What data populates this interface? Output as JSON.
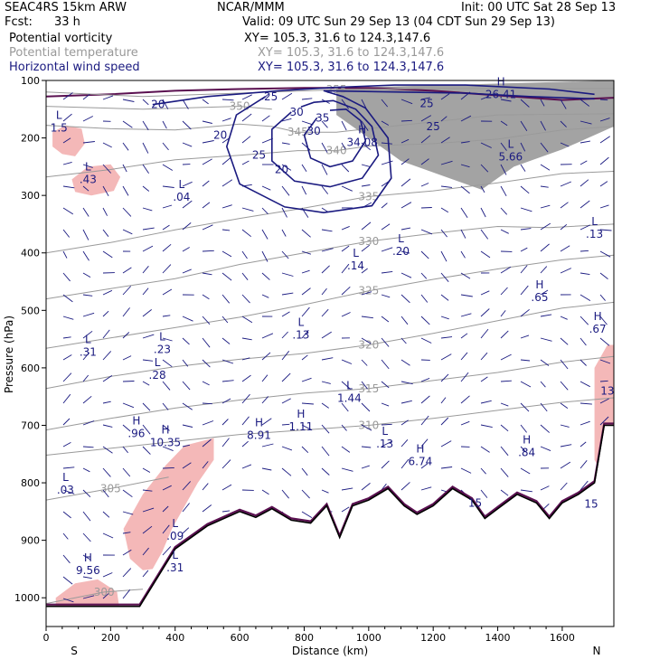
{
  "header": {
    "model": "SEAC4RS 15km ARW",
    "center": "NCAR/MMM",
    "init": "Init: 00 UTC Sat 28 Sep 13",
    "fcst_label": "Fcst:",
    "fcst_value": "33 h",
    "valid": "Valid: 09 UTC Sun 29 Sep 13 (04 CDT Sun 29 Sep 13)",
    "fields": [
      {
        "name": "Potential vorticity",
        "xy": "XY= 105.3, 31.6 to 124.3,147.6",
        "color": "#000000"
      },
      {
        "name": "Potential temperature",
        "xy": "XY= 105.3, 31.6 to 124.3,147.6",
        "color": "#999999"
      },
      {
        "name": "Horizontal wind speed",
        "xy": "XY= 105.3, 31.6 to 124.3,147.6",
        "color": "#1a1a80"
      }
    ]
  },
  "chart_data": {
    "type": "cross-section",
    "xlabel": "Distance (km)",
    "ylabel": "Pressure (hPa)",
    "xlim": [
      0,
      1760
    ],
    "ylim": [
      1050,
      100
    ],
    "xticks": [
      "0",
      "200",
      "400",
      "600",
      "800",
      "1000",
      "1200",
      "1400",
      "1600"
    ],
    "xtick_values": [
      0,
      200,
      400,
      600,
      800,
      1000,
      1200,
      1400,
      1600
    ],
    "yticks": [
      "100",
      "200",
      "300",
      "400",
      "500",
      "600",
      "700",
      "800",
      "900",
      "1000"
    ],
    "ytick_values": [
      100,
      200,
      300,
      400,
      500,
      600,
      700,
      800,
      900,
      1000
    ],
    "endpoint_labels": {
      "left": "S",
      "right": "N"
    },
    "colors": {
      "wind_speed": "#1a1a80",
      "theta": "#9a9a9a",
      "pv_fill": "#f4b8b8",
      "pv_dark": "#333333",
      "terrain": "#000000",
      "pv_contour": "#5a1050"
    },
    "wind_speed_contours": [
      {
        "value": "20",
        "points": [
          [
            330,
            142
          ],
          [
            500,
            128
          ],
          [
            720,
            118
          ],
          [
            900,
            112
          ],
          [
            1080,
            108
          ],
          [
            1300,
            108
          ],
          [
            1560,
            115
          ],
          [
            1700,
            124
          ]
        ]
      },
      {
        "value": "25",
        "points": [
          [
            680,
            128
          ],
          [
            590,
            160
          ],
          [
            560,
            215
          ],
          [
            600,
            280
          ],
          [
            740,
            320
          ],
          [
            860,
            330
          ],
          [
            1010,
            318
          ],
          [
            1070,
            270
          ],
          [
            1060,
            200
          ],
          [
            990,
            148
          ],
          [
            920,
            128
          ],
          [
            860,
            118
          ],
          [
            1300,
            122
          ],
          [
            1500,
            128
          ],
          [
            1700,
            132
          ]
        ]
      },
      {
        "value": "30",
        "points": [
          [
            760,
            155
          ],
          [
            700,
            185
          ],
          [
            700,
            240
          ],
          [
            770,
            275
          ],
          [
            880,
            285
          ],
          [
            980,
            270
          ],
          [
            1030,
            230
          ],
          [
            1010,
            180
          ],
          [
            960,
            150
          ],
          [
            890,
            135
          ],
          [
            830,
            138
          ],
          [
            790,
            146
          ]
        ]
      },
      {
        "value": "35",
        "points": [
          [
            840,
            165
          ],
          [
            800,
            195
          ],
          [
            820,
            235
          ],
          [
            880,
            250
          ],
          [
            950,
            240
          ],
          [
            990,
            205
          ],
          [
            975,
            170
          ],
          [
            930,
            150
          ],
          [
            880,
            152
          ]
        ]
      }
    ],
    "theta_contours": [
      {
        "value": "355",
        "points": [
          [
            0,
            120
          ],
          [
            300,
            128
          ],
          [
            600,
            122
          ],
          [
            900,
            116
          ],
          [
            1200,
            114
          ],
          [
            1500,
            114
          ],
          [
            1760,
            114
          ]
        ]
      },
      {
        "value": "350",
        "points": [
          [
            0,
            145
          ],
          [
            300,
            150
          ],
          [
            600,
            145
          ],
          [
            700,
            150
          ]
        ]
      },
      {
        "value": "345",
        "points": [
          [
            0,
            178
          ],
          [
            200,
            184
          ],
          [
            400,
            186
          ],
          [
            600,
            176
          ],
          [
            700,
            180
          ],
          [
            780,
            190
          ],
          [
            900,
            190
          ],
          [
            1200,
            172
          ],
          [
            1400,
            160
          ],
          [
            1760,
            158
          ]
        ]
      },
      {
        "value": "340",
        "points": [
          [
            0,
            268
          ],
          [
            200,
            255
          ],
          [
            400,
            238
          ],
          [
            600,
            230
          ],
          [
            780,
            222
          ],
          [
            900,
            222
          ],
          [
            1000,
            214
          ],
          [
            1200,
            210
          ],
          [
            1400,
            202
          ],
          [
            1600,
            186
          ],
          [
            1760,
            180
          ]
        ]
      },
      {
        "value": "335",
        "points": [
          [
            0,
            400
          ],
          [
            200,
            382
          ],
          [
            400,
            360
          ],
          [
            600,
            340
          ],
          [
            800,
            322
          ],
          [
            1000,
            302
          ],
          [
            1200,
            292
          ],
          [
            1400,
            278
          ],
          [
            1600,
            262
          ],
          [
            1760,
            258
          ]
        ]
      },
      {
        "value": "330",
        "points": [
          [
            0,
            480
          ],
          [
            200,
            462
          ],
          [
            400,
            445
          ],
          [
            600,
            420
          ],
          [
            800,
            400
          ],
          [
            1000,
            380
          ],
          [
            1200,
            366
          ],
          [
            1400,
            354
          ],
          [
            1560,
            356
          ],
          [
            1760,
            350
          ]
        ]
      },
      {
        "value": "325",
        "points": [
          [
            0,
            566
          ],
          [
            200,
            548
          ],
          [
            400,
            530
          ],
          [
            600,
            512
          ],
          [
            800,
            490
          ],
          [
            1000,
            466
          ],
          [
            1200,
            446
          ],
          [
            1400,
            428
          ],
          [
            1600,
            412
          ],
          [
            1760,
            404
          ]
        ]
      },
      {
        "value": "320",
        "points": [
          [
            0,
            636
          ],
          [
            200,
            615
          ],
          [
            400,
            598
          ],
          [
            600,
            585
          ],
          [
            800,
            575
          ],
          [
            1000,
            560
          ],
          [
            1200,
            540
          ],
          [
            1400,
            518
          ],
          [
            1600,
            496
          ],
          [
            1760,
            486
          ]
        ]
      },
      {
        "value": "315",
        "points": [
          [
            0,
            708
          ],
          [
            200,
            688
          ],
          [
            400,
            670
          ],
          [
            600,
            656
          ],
          [
            800,
            644
          ],
          [
            1000,
            636
          ],
          [
            1200,
            622
          ],
          [
            1400,
            608
          ],
          [
            1600,
            590
          ],
          [
            1760,
            580
          ]
        ]
      },
      {
        "value": "310",
        "points": [
          [
            0,
            752
          ],
          [
            200,
            740
          ],
          [
            400,
            728
          ],
          [
            600,
            716
          ],
          [
            800,
            708
          ],
          [
            1000,
            700
          ],
          [
            1200,
            688
          ],
          [
            1400,
            674
          ],
          [
            1600,
            660
          ],
          [
            1760,
            652
          ]
        ]
      },
      {
        "value": "305",
        "points": [
          [
            0,
            830
          ],
          [
            200,
            810
          ],
          [
            380,
            790
          ]
        ]
      },
      {
        "value": "300",
        "points": [
          [
            0,
            1010
          ],
          [
            180,
            990
          ],
          [
            300,
            985
          ]
        ]
      }
    ],
    "pv_blobs": [
      {
        "points": [
          [
            20,
            190
          ],
          [
            60,
            178
          ],
          [
            110,
            184
          ],
          [
            120,
            210
          ],
          [
            90,
            232
          ],
          [
            50,
            228
          ],
          [
            20,
            215
          ]
        ]
      },
      {
        "points": [
          [
            80,
            272
          ],
          [
            130,
            250
          ],
          [
            200,
            246
          ],
          [
            230,
            268
          ],
          [
            210,
            292
          ],
          [
            140,
            300
          ],
          [
            90,
            294
          ]
        ]
      },
      {
        "points": [
          [
            240,
            880
          ],
          [
            300,
            820
          ],
          [
            370,
            770
          ],
          [
            430,
            735
          ],
          [
            520,
            722
          ],
          [
            520,
            760
          ],
          [
            470,
            800
          ],
          [
            430,
            840
          ],
          [
            390,
            880
          ],
          [
            360,
            920
          ],
          [
            330,
            950
          ],
          [
            300,
            952
          ],
          [
            260,
            932
          ]
        ]
      },
      {
        "points": [
          [
            30,
            1000
          ],
          [
            90,
            975
          ],
          [
            160,
            968
          ],
          [
            220,
            990
          ],
          [
            230,
            1030
          ],
          [
            150,
            1045
          ],
          [
            60,
            1050
          ],
          [
            30,
            1030
          ]
        ]
      },
      {
        "points": [
          [
            1700,
            600
          ],
          [
            1740,
            560
          ],
          [
            1760,
            560
          ],
          [
            1760,
            800
          ],
          [
            1730,
            790
          ],
          [
            1700,
            760
          ]
        ]
      }
    ],
    "terrain": [
      [
        0,
        1015
      ],
      [
        290,
        1015
      ],
      [
        400,
        915
      ],
      [
        500,
        875
      ],
      [
        600,
        850
      ],
      [
        650,
        860
      ],
      [
        700,
        845
      ],
      [
        760,
        865
      ],
      [
        820,
        870
      ],
      [
        870,
        840
      ],
      [
        910,
        895
      ],
      [
        950,
        840
      ],
      [
        1000,
        830
      ],
      [
        1060,
        810
      ],
      [
        1110,
        840
      ],
      [
        1150,
        855
      ],
      [
        1200,
        840
      ],
      [
        1260,
        810
      ],
      [
        1320,
        830
      ],
      [
        1360,
        862
      ],
      [
        1400,
        845
      ],
      [
        1460,
        820
      ],
      [
        1520,
        835
      ],
      [
        1560,
        862
      ],
      [
        1600,
        835
      ],
      [
        1650,
        820
      ],
      [
        1700,
        800
      ],
      [
        1730,
        700
      ],
      [
        1760,
        700
      ]
    ],
    "pv_contour_upper": [
      [
        0,
        128
      ],
      [
        200,
        124
      ],
      [
        400,
        118
      ],
      [
        600,
        115
      ],
      [
        800,
        113
      ],
      [
        1000,
        113
      ],
      [
        1200,
        118
      ],
      [
        1400,
        126
      ],
      [
        1600,
        134
      ],
      [
        1760,
        130
      ]
    ],
    "pv_fill_upper": [
      [
        900,
        113
      ],
      [
        1760,
        100
      ],
      [
        1760,
        180
      ],
      [
        1600,
        220
      ],
      [
        1450,
        250
      ],
      [
        1350,
        290
      ],
      [
        1200,
        260
      ],
      [
        1100,
        240
      ],
      [
        1000,
        200
      ],
      [
        900,
        160
      ]
    ],
    "hl_labels": [
      {
        "kind": "L",
        "value": "1.5",
        "x": 40,
        "y": 170
      },
      {
        "kind": "L",
        "value": ".43",
        "x": 130,
        "y": 260
      },
      {
        "kind": "L",
        "value": ".04",
        "x": 420,
        "y": 290
      },
      {
        "kind": "H",
        "value": "34.08",
        "x": 980,
        "y": 195
      },
      {
        "kind": "H",
        "value": "26.41",
        "x": 1410,
        "y": 112
      },
      {
        "kind": "L",
        "value": "5.66",
        "x": 1440,
        "y": 220
      },
      {
        "kind": "L",
        "value": ".20",
        "x": 1100,
        "y": 385
      },
      {
        "kind": "L",
        "value": ".14",
        "x": 960,
        "y": 410
      },
      {
        "kind": "L",
        "value": ".13",
        "x": 1700,
        "y": 355
      },
      {
        "kind": "H",
        "value": ".65",
        "x": 1530,
        "y": 465
      },
      {
        "kind": "H",
        "value": ".67",
        "x": 1710,
        "y": 520
      },
      {
        "kind": "L",
        "value": ".13",
        "x": 790,
        "y": 530
      },
      {
        "kind": "L",
        "value": ".31",
        "x": 130,
        "y": 560
      },
      {
        "kind": "L",
        "value": ".23",
        "x": 360,
        "y": 555
      },
      {
        "kind": "L",
        "value": ".28",
        "x": 345,
        "y": 600
      },
      {
        "kind": "L",
        "value": "1.44",
        "x": 940,
        "y": 640
      },
      {
        "kind": "H",
        "value": ".96",
        "x": 280,
        "y": 702
      },
      {
        "kind": "H",
        "value": "10.35",
        "x": 370,
        "y": 717
      },
      {
        "kind": "H",
        "value": "8.91",
        "x": 660,
        "y": 705
      },
      {
        "kind": "H",
        "value": "1.11",
        "x": 790,
        "y": 690
      },
      {
        "kind": "L",
        "value": ".13",
        "x": 1050,
        "y": 720
      },
      {
        "kind": "H",
        "value": "6.74",
        "x": 1160,
        "y": 750
      },
      {
        "kind": "H",
        "value": ".84",
        "x": 1490,
        "y": 735
      },
      {
        "kind": "L",
        "value": ".03",
        "x": 60,
        "y": 800
      },
      {
        "kind": "L",
        "value": ".09",
        "x": 400,
        "y": 880
      },
      {
        "kind": "L",
        "value": ".31",
        "x": 400,
        "y": 935
      },
      {
        "kind": "H",
        "value": "9.56",
        "x": 130,
        "y": 940
      }
    ],
    "wind_label_extra": [
      {
        "text": "20",
        "x": 540,
        "y": 195
      },
      {
        "text": "25",
        "x": 660,
        "y": 230
      },
      {
        "text": "25",
        "x": 1200,
        "y": 180
      },
      {
        "text": "25",
        "x": 1180,
        "y": 140
      },
      {
        "text": "30",
        "x": 830,
        "y": 188
      },
      {
        "text": "20",
        "x": 730,
        "y": 255
      },
      {
        "text": "15",
        "x": 1690,
        "y": 837
      },
      {
        "text": "13",
        "x": 1740,
        "y": 640
      },
      {
        "text": "15",
        "x": 1330,
        "y": 835
      }
    ]
  }
}
